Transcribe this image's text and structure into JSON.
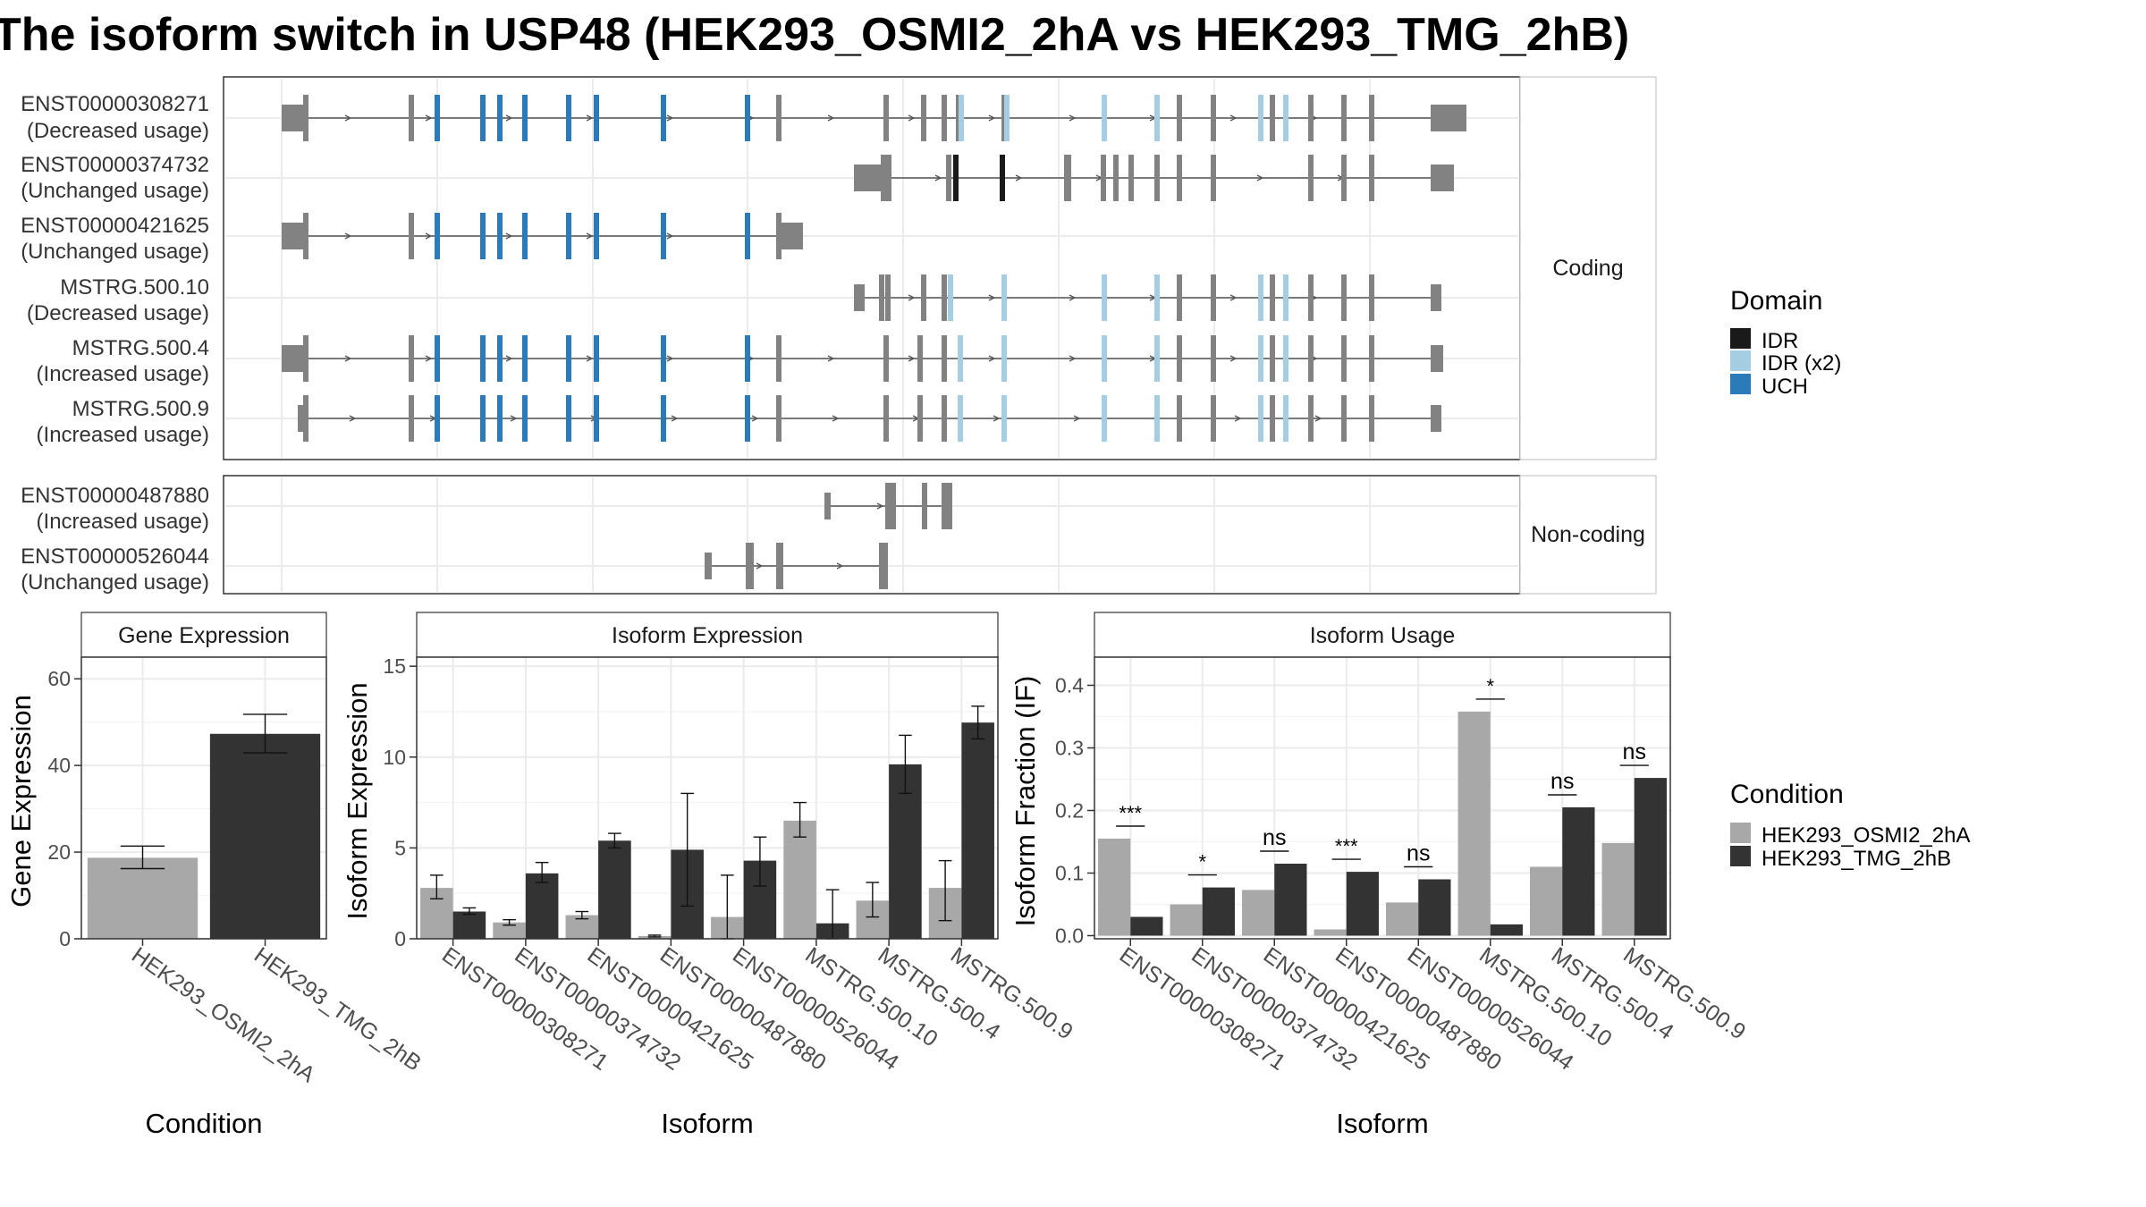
{
  "title": "The isoform switch in USP48 (HEK293_OSMI2_2hA vs HEK293_TMG_2hB)",
  "colors": {
    "cond_a": "#a8a8a8",
    "cond_b": "#333333",
    "exon": "#828282",
    "idr": "#1a1a1a",
    "idr_x2": "#a6cee3",
    "uch": "#2b7bba",
    "grid": "#ebebeb",
    "strip_bg": "#ffffff"
  },
  "transcript_panel": {
    "coding_label": "Coding",
    "noncoding_label": "Non-coding",
    "coding": [
      {
        "id": "ENST00000308271",
        "usage": "(Decreased usage)"
      },
      {
        "id": "ENST00000374732",
        "usage": "(Unchanged usage)"
      },
      {
        "id": "ENST00000421625",
        "usage": "(Unchanged usage)"
      },
      {
        "id": "MSTRG.500.10",
        "usage": "(Decreased usage)"
      },
      {
        "id": "MSTRG.500.4",
        "usage": "(Increased usage)"
      },
      {
        "id": "MSTRG.500.9",
        "usage": "(Increased usage)"
      }
    ],
    "noncoding": [
      {
        "id": "ENST00000487880",
        "usage": "(Increased usage)"
      },
      {
        "id": "ENST00000526044",
        "usage": "(Unchanged usage)"
      }
    ]
  },
  "domain_legend": {
    "title": "Domain",
    "items": [
      {
        "label": "IDR",
        "color": "#1a1a1a"
      },
      {
        "label": "IDR (x2)",
        "color": "#a6cee3"
      },
      {
        "label": "UCH",
        "color": "#2b7bba"
      }
    ]
  },
  "condition_legend": {
    "title": "Condition",
    "items": [
      {
        "label": "HEK293_OSMI2_2hA",
        "color": "#a8a8a8"
      },
      {
        "label": "HEK293_TMG_2hB",
        "color": "#333333"
      }
    ]
  },
  "chart_data": [
    {
      "type": "bar",
      "title": "Gene Expression",
      "xlabel": "Condition",
      "ylabel": "Gene Expression",
      "ylim": [
        0,
        65
      ],
      "yticks": [
        0,
        20,
        40,
        60
      ],
      "categories": [
        "HEK293_OSMI2_2hA",
        "HEK293_TMG_2hB"
      ],
      "values": [
        18.7,
        47.3
      ],
      "error_low": [
        16.2,
        42.9
      ],
      "error_high": [
        21.4,
        51.8
      ]
    },
    {
      "type": "bar",
      "title": "Isoform Expression",
      "xlabel": "Isoform",
      "ylabel": "Isoform Expression",
      "ylim": [
        0,
        15.5
      ],
      "yticks": [
        0,
        5,
        10,
        15
      ],
      "categories": [
        "ENST00000308271",
        "ENST00000374732",
        "ENST00000421625",
        "ENST00000487880",
        "ENST00000526044",
        "MSTRG.500.10",
        "MSTRG.500.4",
        "MSTRG.500.9"
      ],
      "series": [
        {
          "name": "HEK293_OSMI2_2hA",
          "values": [
            2.8,
            0.9,
            1.3,
            0.15,
            1.2,
            6.5,
            2.1,
            2.8
          ],
          "error_low": [
            2.2,
            0.75,
            1.1,
            0.1,
            0.0,
            5.6,
            1.2,
            1.0
          ],
          "error_high": [
            3.5,
            1.05,
            1.5,
            0.2,
            3.5,
            7.5,
            3.1,
            4.3
          ]
        },
        {
          "name": "HEK293_TMG_2hB",
          "values": [
            1.5,
            3.6,
            5.4,
            4.9,
            4.3,
            0.85,
            9.6,
            11.9
          ],
          "error_low": [
            1.35,
            3.1,
            5.0,
            1.8,
            2.9,
            0.0,
            8.0,
            11.0
          ],
          "error_high": [
            1.7,
            4.2,
            5.8,
            8.0,
            5.6,
            2.7,
            11.2,
            12.8
          ]
        }
      ]
    },
    {
      "type": "bar",
      "title": "Isoform Usage",
      "xlabel": "Isoform",
      "ylabel": "Isoform Fraction (IF)",
      "ylim": [
        -0.005,
        0.445
      ],
      "yticks": [
        "0.0",
        "0.1",
        "0.2",
        "0.3",
        "0.4"
      ],
      "categories": [
        "ENST00000308271",
        "ENST00000374732",
        "ENST00000421625",
        "ENST00000487880",
        "ENST00000526044",
        "MSTRG.500.10",
        "MSTRG.500.4",
        "MSTRG.500.9"
      ],
      "series": [
        {
          "name": "HEK293_OSMI2_2hA",
          "values": [
            0.155,
            0.05,
            0.073,
            0.01,
            0.053,
            0.358,
            0.11,
            0.148
          ]
        },
        {
          "name": "HEK293_TMG_2hB",
          "values": [
            0.03,
            0.077,
            0.115,
            0.102,
            0.09,
            0.018,
            0.205,
            0.252
          ]
        }
      ],
      "significance": [
        "***",
        "*",
        "ns",
        "***",
        "ns",
        "*",
        "ns",
        "ns"
      ]
    }
  ]
}
